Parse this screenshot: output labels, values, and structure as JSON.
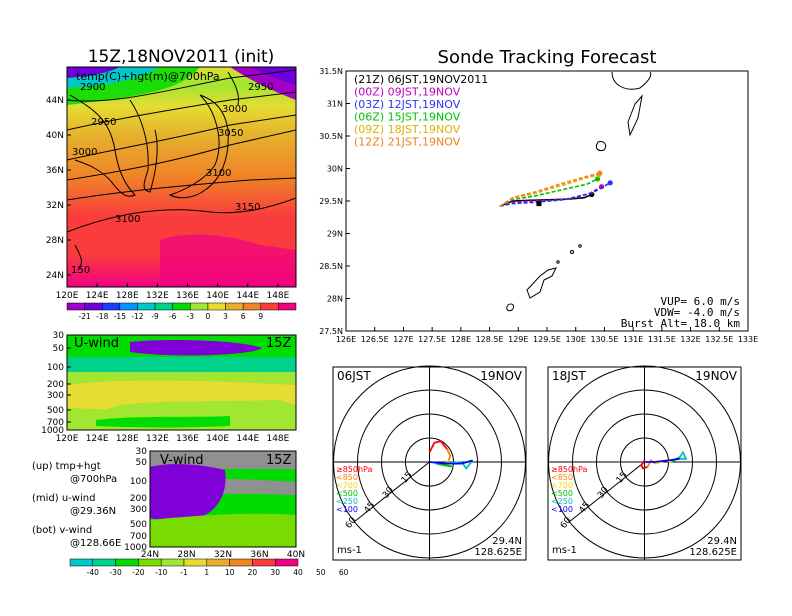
{
  "colors": {
    "cb1": [
      "#a000c8",
      "#6e00dc",
      "#1e3cff",
      "#0096ff",
      "#00c8c8",
      "#00d28c",
      "#00dc00",
      "#a0e632",
      "#e6dc32",
      "#e6af2d",
      "#f08228",
      "#fa3c3c",
      "#f00082"
    ],
    "cb2": [
      "#00c8c8",
      "#00d28c",
      "#00dc00",
      "#78dc00",
      "#a0e632",
      "#e6dc32",
      "#e6af2d",
      "#f08228",
      "#fa3c3c",
      "#f00082"
    ],
    "wind_purple": "#8000d8",
    "wind_grey": "#909090"
  },
  "left": {
    "map_title": "15Z,18NOV2011 (init)",
    "map_sub": "temp(C)+hgt(m)@700hPa",
    "map_contours": [
      "2900",
      "2950",
      "3000",
      "2950",
      "3000",
      "3050",
      "3100",
      "3100",
      "3150",
      "150"
    ],
    "map_xticks": [
      "120E",
      "124E",
      "128E",
      "132E",
      "136E",
      "140E",
      "144E",
      "148E"
    ],
    "map_yticks": [
      "44N",
      "40N",
      "36N",
      "32N",
      "28N",
      "24N"
    ],
    "cb1_labels": [
      "-21",
      "-18",
      "-15",
      "-12",
      "-9",
      "-6",
      "-3",
      "0",
      "3",
      "6",
      "9"
    ],
    "u_label": "U-wind",
    "u_time": "15Z",
    "u_yticks": [
      "30",
      "50",
      "100",
      "200",
      "300",
      "500",
      "700",
      "1000"
    ],
    "u_xticks": [
      "120E",
      "124E",
      "128E",
      "132E",
      "136E",
      "140E",
      "144E",
      "148E"
    ],
    "v_label": "V-wind",
    "v_time": "15Z",
    "v_yticks": [
      "30",
      "50",
      "100",
      "200",
      "300",
      "500",
      "700",
      "1000"
    ],
    "v_xticks": [
      "24N",
      "28N",
      "32N",
      "36N",
      "40N"
    ],
    "legend": [
      {
        "a": "(up) tmp+hgt",
        "b": "@700hPa"
      },
      {
        "a": "(mid) u-wind",
        "b": "@29.36N"
      },
      {
        "a": "(bot) v-wind",
        "b": "@128.66E"
      }
    ],
    "cb2_labels": [
      "-40",
      "-30",
      "-20",
      "-10",
      "-1",
      "1",
      "10",
      "20",
      "30",
      "40",
      "50",
      "60"
    ]
  },
  "track": {
    "title": "Sonde Tracking Forecast",
    "xticks": [
      "126E",
      "126.5E",
      "127E",
      "127.5E",
      "128E",
      "128.5E",
      "129E",
      "129.5E",
      "130E",
      "130.5E",
      "131E",
      "131.5E",
      "132E",
      "132.5E",
      "133E"
    ],
    "yticks": [
      "31.5N",
      "31N",
      "30.5N",
      "30N",
      "29.5N",
      "29N",
      "28.5N",
      "28N",
      "27.5N"
    ],
    "legend": [
      {
        "text": "(21Z)  06JST,19NOV2011",
        "color": "#000000"
      },
      {
        "text": "(00Z)  09JST,19NOV",
        "color": "#c000c0"
      },
      {
        "text": "(03Z)  12JST,19NOV",
        "color": "#3030ff"
      },
      {
        "text": "(06Z)  15JST,19NOV",
        "color": "#00c000"
      },
      {
        "text": "(09Z)  18JST,19NOV",
        "color": "#e0b000"
      },
      {
        "text": "(12Z)  21JST,19NOV",
        "color": "#f08020"
      }
    ],
    "vup": "VUP=  6.0  m/s",
    "vdw": "VDW= -4.0  m/s",
    "burst": "Burst Alt=  18.0  km"
  },
  "chart_data": {
    "type": "line",
    "title": "Sonde Tracking Forecast",
    "xlim": [
      126,
      133
    ],
    "ylim": [
      27.5,
      31.5
    ],
    "launch": [
      129.36,
      29.46
    ],
    "series": [
      {
        "name": "06JST,19NOV2011",
        "color": "#000000",
        "dashed": false,
        "points": [
          [
            128.68,
            29.42
          ],
          [
            128.9,
            29.5
          ],
          [
            129.2,
            29.51
          ],
          [
            129.6,
            29.52
          ],
          [
            129.9,
            29.53
          ],
          [
            130.15,
            29.55
          ],
          [
            130.28,
            29.6
          ]
        ]
      },
      {
        "name": "09JST,19NOV",
        "color": "#c000c0",
        "dashed": true,
        "points": [
          [
            128.68,
            29.42
          ],
          [
            128.9,
            29.48
          ],
          [
            129.3,
            29.5
          ],
          [
            129.8,
            29.52
          ],
          [
            130.2,
            29.6
          ],
          [
            130.45,
            29.72
          ]
        ]
      },
      {
        "name": "12JST,19NOV",
        "color": "#3030ff",
        "dashed": true,
        "points": [
          [
            128.68,
            29.42
          ],
          [
            128.9,
            29.46
          ],
          [
            129.3,
            29.48
          ],
          [
            129.8,
            29.52
          ],
          [
            130.3,
            29.63
          ],
          [
            130.6,
            29.78
          ]
        ]
      },
      {
        "name": "15JST,19NOV",
        "color": "#00c000",
        "dashed": true,
        "points": [
          [
            128.68,
            29.42
          ],
          [
            128.9,
            29.52
          ],
          [
            129.3,
            29.58
          ],
          [
            129.8,
            29.68
          ],
          [
            130.2,
            29.76
          ],
          [
            130.38,
            29.84
          ]
        ]
      },
      {
        "name": "18JST,19NOV",
        "color": "#e0b000",
        "dashed": true,
        "points": [
          [
            128.68,
            29.42
          ],
          [
            128.9,
            29.54
          ],
          [
            129.3,
            29.62
          ],
          [
            129.8,
            29.75
          ],
          [
            130.2,
            29.86
          ],
          [
            130.4,
            29.9
          ]
        ]
      },
      {
        "name": "21JST,19NOV",
        "color": "#f08020",
        "dashed": true,
        "points": [
          [
            128.68,
            29.42
          ],
          [
            128.9,
            29.55
          ],
          [
            129.3,
            29.64
          ],
          [
            129.8,
            29.78
          ],
          [
            130.2,
            29.88
          ],
          [
            130.42,
            29.93
          ]
        ]
      }
    ]
  },
  "hodo1": {
    "title": "06JST",
    "date": "19NOV",
    "ring_labels": [
      "15",
      "30",
      "45",
      "60"
    ],
    "levels": [
      {
        "t": "≥850hPa",
        "c": "#ff0000"
      },
      {
        "t": "<850",
        "c": "#ff8000"
      },
      {
        "t": "<700",
        "c": "#ffd000"
      },
      {
        "t": "<500",
        "c": "#00c000"
      },
      {
        "t": "<250",
        "c": "#00c0c0"
      },
      {
        "t": "<100",
        "c": "#0000ff"
      }
    ],
    "unit": "ms-1",
    "lat": "29.4N",
    "lon": "128.625E",
    "segments": [
      {
        "c": "#ff0000",
        "pts": [
          [
            0,
            -6
          ],
          [
            3,
            -12
          ],
          [
            7,
            -13
          ],
          [
            11,
            -8
          ]
        ]
      },
      {
        "c": "#ff8000",
        "pts": [
          [
            11,
            -8
          ],
          [
            13,
            -4
          ],
          [
            12,
            -1
          ]
        ]
      },
      {
        "c": "#ffd000",
        "pts": [
          [
            12,
            -1
          ],
          [
            10,
            2
          ],
          [
            15,
            3
          ]
        ]
      },
      {
        "c": "#00c000",
        "pts": [
          [
            15,
            3
          ],
          [
            9,
            2
          ],
          [
            4,
            1
          ]
        ]
      },
      {
        "c": "#00c0c0",
        "pts": [
          [
            4,
            1
          ],
          [
            20,
            0
          ],
          [
            23,
            4
          ],
          [
            27,
            -1
          ]
        ]
      },
      {
        "c": "#0000ff",
        "pts": [
          [
            27,
            -1
          ],
          [
            20,
            1
          ],
          [
            10,
            1
          ],
          [
            0,
            0
          ]
        ]
      }
    ]
  },
  "hodo2": {
    "title": "18JST",
    "date": "19NOV",
    "ring_labels": [
      "15",
      "30",
      "45",
      "60"
    ],
    "levels": [
      {
        "t": "≥850hPa",
        "c": "#ff0000"
      },
      {
        "t": "<850",
        "c": "#ff8000"
      },
      {
        "t": "<700",
        "c": "#ffd000"
      },
      {
        "t": "<500",
        "c": "#00c000"
      },
      {
        "t": "<250",
        "c": "#00c0c0"
      },
      {
        "t": "<100",
        "c": "#0000ff"
      }
    ],
    "unit": "ms-1",
    "lat": "29.4N",
    "lon": "128.625E",
    "segments": [
      {
        "c": "#ff0000",
        "pts": [
          [
            0,
            -1
          ],
          [
            -2,
            2
          ],
          [
            -1,
            4
          ],
          [
            2,
            3
          ]
        ]
      },
      {
        "c": "#ff8000",
        "pts": [
          [
            2,
            3
          ],
          [
            4,
            -1
          ],
          [
            7,
            1
          ]
        ]
      },
      {
        "c": "#ffd000",
        "pts": [
          [
            7,
            1
          ],
          [
            13,
            -1
          ],
          [
            17,
            0
          ]
        ]
      },
      {
        "c": "#00c000",
        "pts": [
          [
            17,
            0
          ],
          [
            20,
            -2
          ],
          [
            22,
            -3
          ]
        ]
      },
      {
        "c": "#00c0c0",
        "pts": [
          [
            22,
            -3
          ],
          [
            24,
            -6
          ],
          [
            26,
            -2
          ],
          [
            22,
            -2
          ]
        ]
      },
      {
        "c": "#0000ff",
        "pts": [
          [
            22,
            -2
          ],
          [
            15,
            -1
          ],
          [
            6,
            0
          ],
          [
            0,
            0
          ]
        ]
      }
    ]
  }
}
